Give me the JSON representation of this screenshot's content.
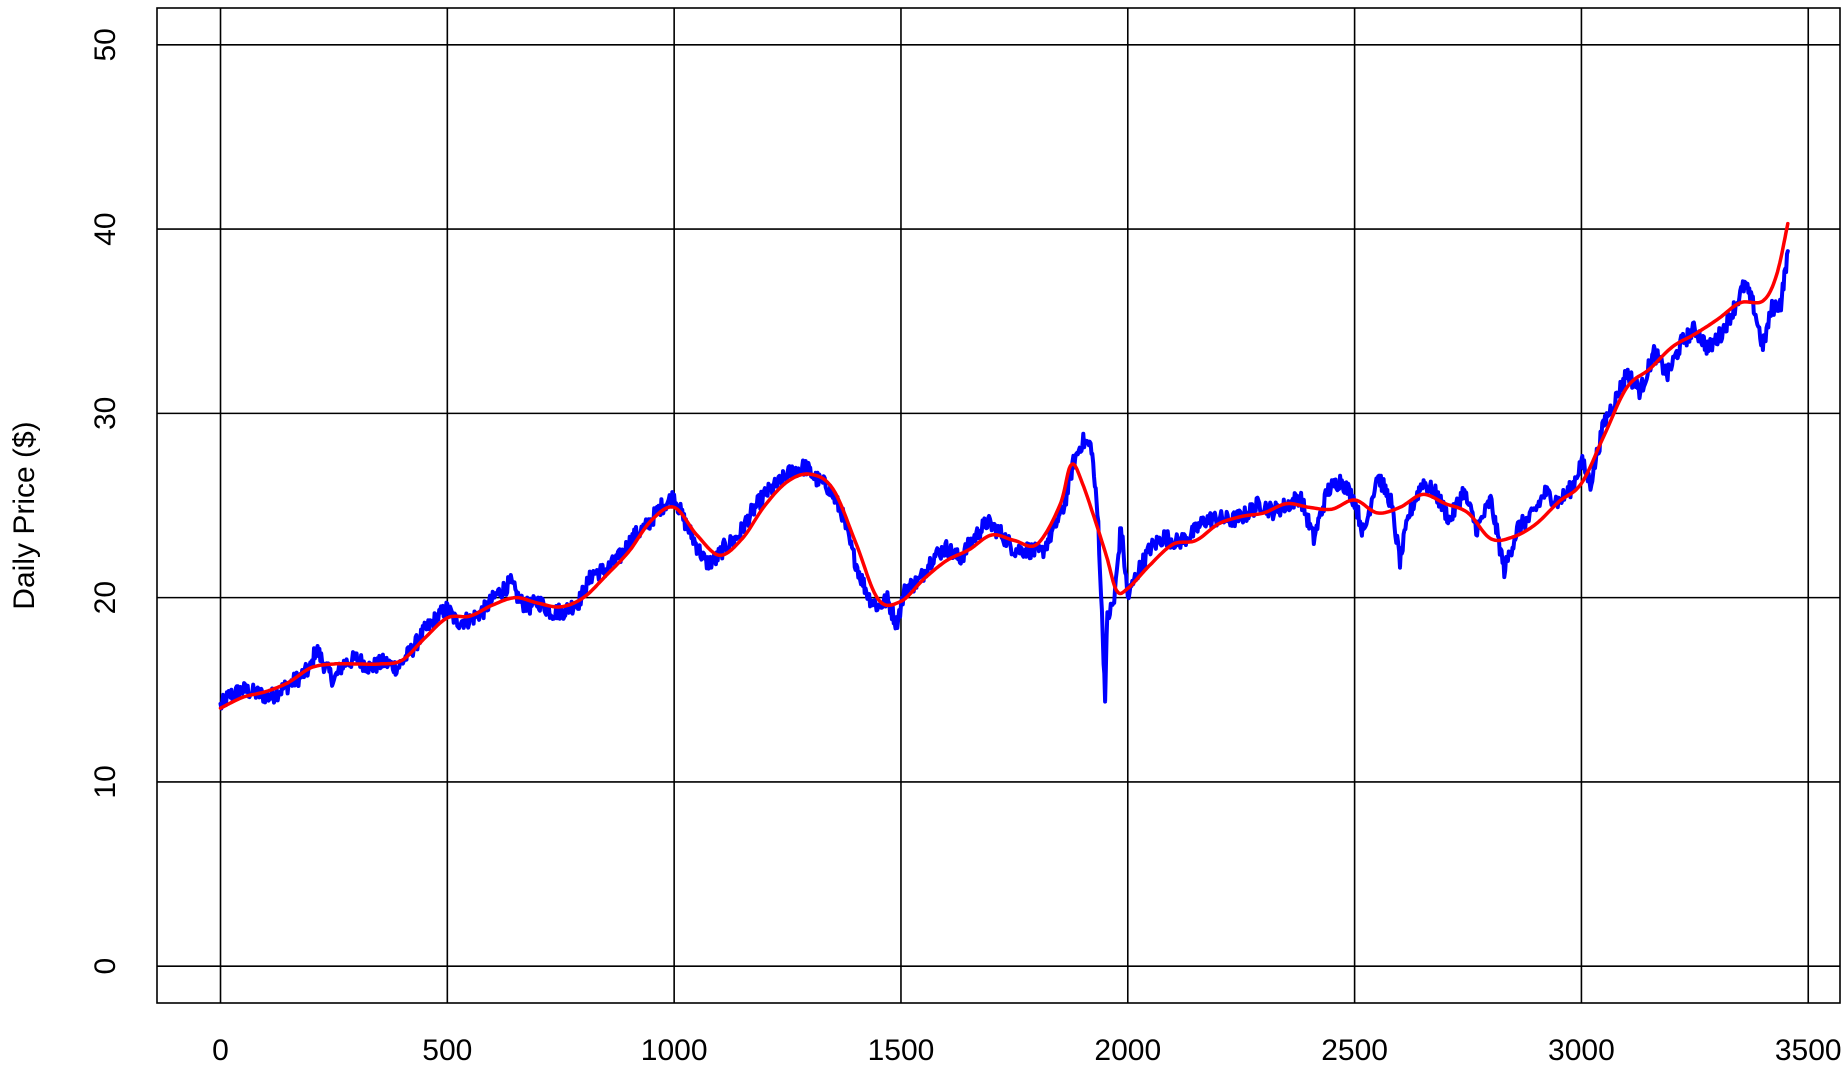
{
  "chart_data": {
    "type": "line",
    "title": "",
    "xlabel": "",
    "ylabel": "Daily Price ($)",
    "xlim": [
      -140,
      3570
    ],
    "ylim": [
      -2,
      52
    ],
    "x_ticks": [
      0,
      500,
      1000,
      1500,
      2000,
      2500,
      3000,
      3500
    ],
    "y_ticks": [
      0,
      10,
      20,
      30,
      40,
      50
    ],
    "grid": true,
    "legend": "none",
    "series": [
      {
        "color": "#0000ff",
        "style": "noisy",
        "points": [
          [
            0,
            14.1
          ],
          [
            20,
            14.7
          ],
          [
            50,
            15.0
          ],
          [
            80,
            14.8
          ],
          [
            110,
            14.6
          ],
          [
            140,
            15.1
          ],
          [
            170,
            15.6
          ],
          [
            200,
            16.2
          ],
          [
            210,
            17.3
          ],
          [
            230,
            16.3
          ],
          [
            250,
            15.5
          ],
          [
            270,
            16.4
          ],
          [
            300,
            16.7
          ],
          [
            330,
            16.2
          ],
          [
            360,
            16.5
          ],
          [
            390,
            16.2
          ],
          [
            420,
            17.1
          ],
          [
            450,
            18.2
          ],
          [
            480,
            19.0
          ],
          [
            500,
            19.4
          ],
          [
            520,
            18.7
          ],
          [
            550,
            18.8
          ],
          [
            580,
            19.3
          ],
          [
            610,
            20.2
          ],
          [
            640,
            20.8
          ],
          [
            660,
            19.8
          ],
          [
            680,
            19.5
          ],
          [
            700,
            19.8
          ],
          [
            730,
            19.2
          ],
          [
            760,
            19.3
          ],
          [
            790,
            19.8
          ],
          [
            820,
            21.3
          ],
          [
            850,
            21.5
          ],
          [
            880,
            22.2
          ],
          [
            910,
            23.3
          ],
          [
            940,
            23.9
          ],
          [
            970,
            24.9
          ],
          [
            1000,
            25.5
          ],
          [
            1020,
            24.3
          ],
          [
            1050,
            22.8
          ],
          [
            1070,
            21.9
          ],
          [
            1090,
            22.0
          ],
          [
            1110,
            22.7
          ],
          [
            1140,
            23.3
          ],
          [
            1170,
            24.6
          ],
          [
            1200,
            25.6
          ],
          [
            1230,
            26.2
          ],
          [
            1260,
            26.9
          ],
          [
            1290,
            27.1
          ],
          [
            1310,
            26.5
          ],
          [
            1340,
            26.0
          ],
          [
            1370,
            24.6
          ],
          [
            1390,
            22.7
          ],
          [
            1410,
            21.2
          ],
          [
            1430,
            20.0
          ],
          [
            1450,
            19.5
          ],
          [
            1470,
            19.9
          ],
          [
            1490,
            18.6
          ],
          [
            1510,
            20.5
          ],
          [
            1540,
            20.9
          ],
          [
            1570,
            22.2
          ],
          [
            1600,
            22.7
          ],
          [
            1630,
            22.1
          ],
          [
            1660,
            23.2
          ],
          [
            1690,
            24.1
          ],
          [
            1720,
            23.5
          ],
          [
            1750,
            22.6
          ],
          [
            1780,
            22.6
          ],
          [
            1810,
            22.4
          ],
          [
            1840,
            23.9
          ],
          [
            1860,
            25.0
          ],
          [
            1880,
            27.3
          ],
          [
            1900,
            28.5
          ],
          [
            1920,
            28.2
          ],
          [
            1935,
            24.0
          ],
          [
            1945,
            17.8
          ],
          [
            1950,
            14.8
          ],
          [
            1955,
            18.9
          ],
          [
            1970,
            19.8
          ],
          [
            1985,
            23.9
          ],
          [
            2000,
            20.0
          ],
          [
            2020,
            21.3
          ],
          [
            2050,
            22.7
          ],
          [
            2080,
            23.3
          ],
          [
            2110,
            23.0
          ],
          [
            2140,
            23.4
          ],
          [
            2170,
            24.2
          ],
          [
            2200,
            24.3
          ],
          [
            2230,
            24.2
          ],
          [
            2260,
            24.5
          ],
          [
            2290,
            25.1
          ],
          [
            2320,
            24.7
          ],
          [
            2350,
            25.0
          ],
          [
            2380,
            25.5
          ],
          [
            2410,
            23.2
          ],
          [
            2440,
            25.8
          ],
          [
            2470,
            26.4
          ],
          [
            2500,
            25.3
          ],
          [
            2520,
            23.4
          ],
          [
            2550,
            26.7
          ],
          [
            2580,
            25.2
          ],
          [
            2600,
            22.0
          ],
          [
            2620,
            24.5
          ],
          [
            2650,
            26.3
          ],
          [
            2680,
            25.6
          ],
          [
            2710,
            24.2
          ],
          [
            2740,
            25.8
          ],
          [
            2770,
            23.7
          ],
          [
            2800,
            25.3
          ],
          [
            2830,
            21.5
          ],
          [
            2860,
            23.8
          ],
          [
            2890,
            24.4
          ],
          [
            2920,
            25.7
          ],
          [
            2950,
            25.2
          ],
          [
            2980,
            26.0
          ],
          [
            3000,
            27.4
          ],
          [
            3020,
            26.2
          ],
          [
            3050,
            29.5
          ],
          [
            3080,
            31.0
          ],
          [
            3100,
            32.2
          ],
          [
            3130,
            31.2
          ],
          [
            3160,
            33.3
          ],
          [
            3190,
            32.1
          ],
          [
            3220,
            33.8
          ],
          [
            3250,
            34.6
          ],
          [
            3280,
            33.5
          ],
          [
            3310,
            34.4
          ],
          [
            3340,
            35.9
          ],
          [
            3360,
            37.0
          ],
          [
            3380,
            35.8
          ],
          [
            3400,
            33.6
          ],
          [
            3420,
            35.7
          ],
          [
            3440,
            36.0
          ],
          [
            3455,
            38.8
          ]
        ]
      },
      {
        "color": "#ff0000",
        "style": "smooth",
        "points": [
          [
            0,
            14.0
          ],
          [
            50,
            14.6
          ],
          [
            100,
            14.9
          ],
          [
            150,
            15.4
          ],
          [
            200,
            16.2
          ],
          [
            250,
            16.4
          ],
          [
            300,
            16.4
          ],
          [
            350,
            16.4
          ],
          [
            400,
            16.6
          ],
          [
            450,
            17.8
          ],
          [
            500,
            18.9
          ],
          [
            550,
            19.0
          ],
          [
            600,
            19.6
          ],
          [
            650,
            20.0
          ],
          [
            700,
            19.7
          ],
          [
            750,
            19.5
          ],
          [
            800,
            20.0
          ],
          [
            850,
            21.2
          ],
          [
            900,
            22.5
          ],
          [
            950,
            24.2
          ],
          [
            1000,
            24.9
          ],
          [
            1050,
            23.4
          ],
          [
            1100,
            22.3
          ],
          [
            1150,
            23.2
          ],
          [
            1200,
            25.0
          ],
          [
            1250,
            26.3
          ],
          [
            1300,
            26.7
          ],
          [
            1350,
            25.9
          ],
          [
            1400,
            23.0
          ],
          [
            1450,
            19.9
          ],
          [
            1500,
            19.8
          ],
          [
            1550,
            21.0
          ],
          [
            1600,
            22.0
          ],
          [
            1650,
            22.6
          ],
          [
            1700,
            23.4
          ],
          [
            1750,
            23.1
          ],
          [
            1800,
            22.9
          ],
          [
            1850,
            25.0
          ],
          [
            1875,
            27.2
          ],
          [
            1900,
            26.2
          ],
          [
            1950,
            22.5
          ],
          [
            1975,
            20.4
          ],
          [
            2000,
            20.5
          ],
          [
            2050,
            21.8
          ],
          [
            2100,
            22.9
          ],
          [
            2150,
            23.1
          ],
          [
            2200,
            24.0
          ],
          [
            2250,
            24.4
          ],
          [
            2300,
            24.6
          ],
          [
            2350,
            25.1
          ],
          [
            2400,
            24.9
          ],
          [
            2450,
            24.8
          ],
          [
            2500,
            25.3
          ],
          [
            2550,
            24.6
          ],
          [
            2600,
            24.9
          ],
          [
            2650,
            25.6
          ],
          [
            2700,
            25.1
          ],
          [
            2750,
            24.6
          ],
          [
            2800,
            23.2
          ],
          [
            2850,
            23.3
          ],
          [
            2900,
            24.0
          ],
          [
            2950,
            25.2
          ],
          [
            3000,
            26.2
          ],
          [
            3050,
            28.8
          ],
          [
            3100,
            31.4
          ],
          [
            3150,
            32.4
          ],
          [
            3200,
            33.6
          ],
          [
            3250,
            34.3
          ],
          [
            3300,
            35.1
          ],
          [
            3350,
            36.0
          ],
          [
            3400,
            36.1
          ],
          [
            3430,
            37.5
          ],
          [
            3455,
            40.3
          ]
        ]
      }
    ]
  }
}
